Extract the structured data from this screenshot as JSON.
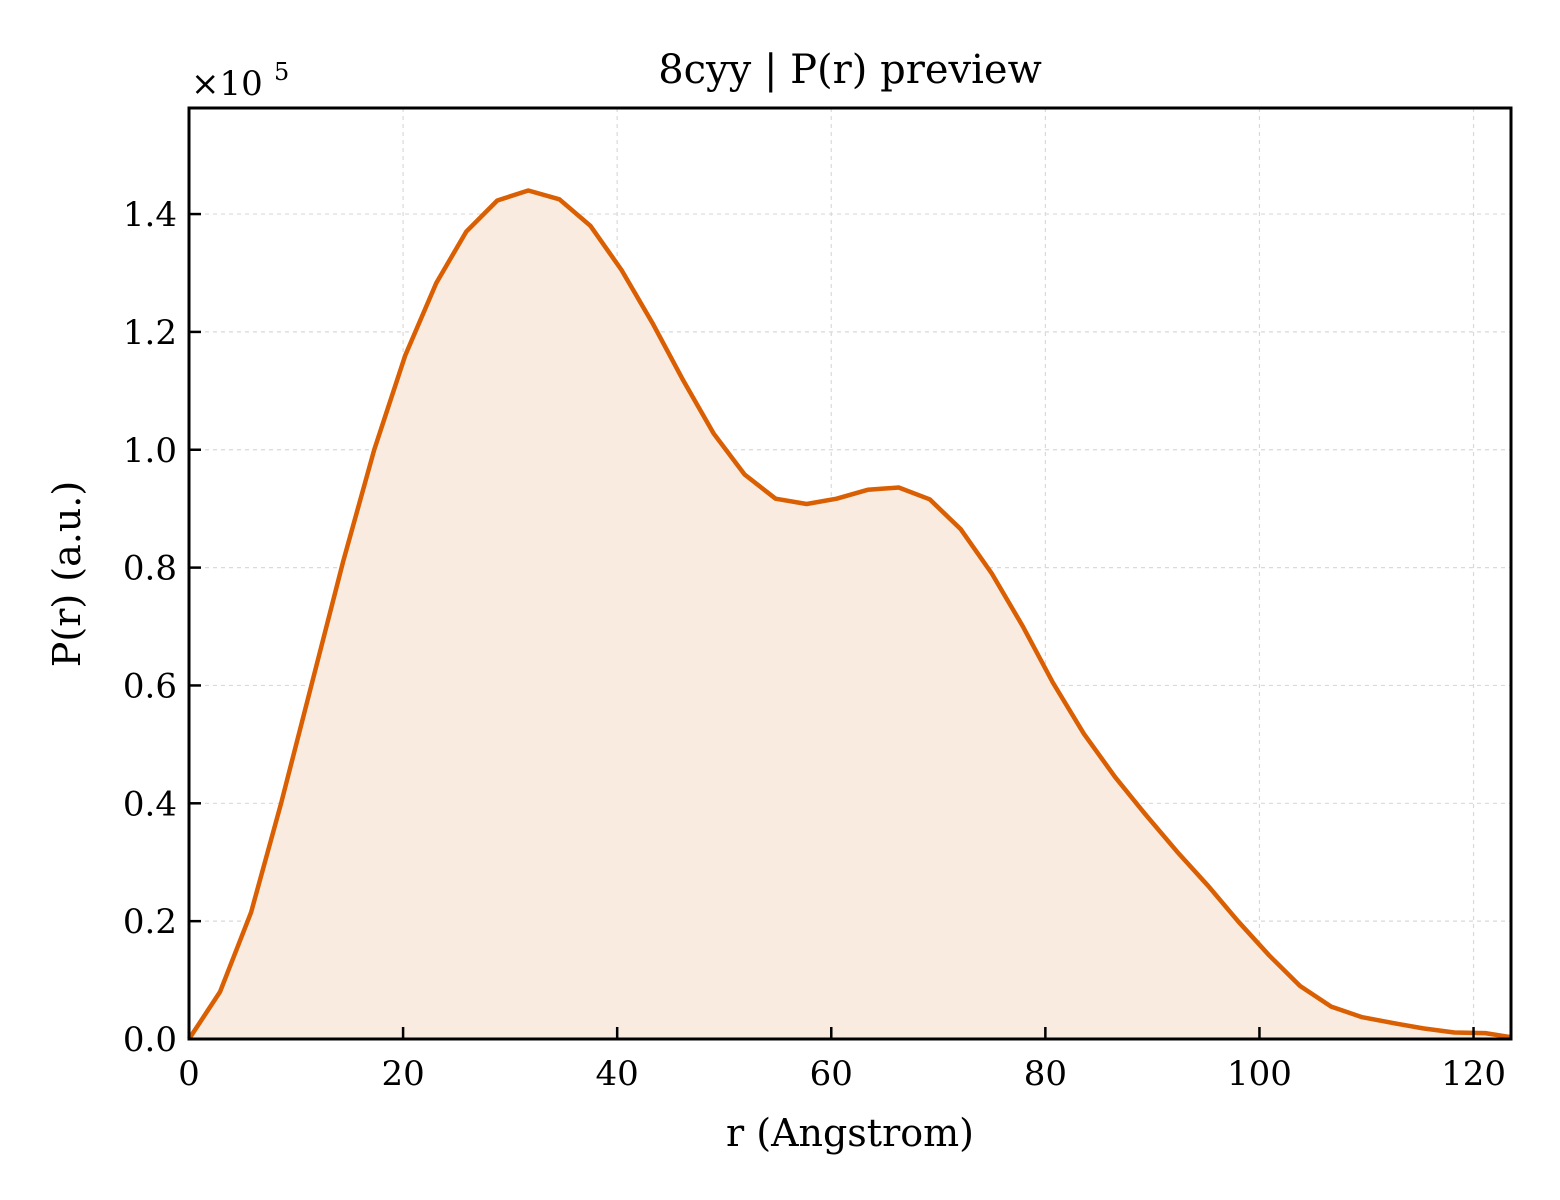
{
  "chart_data": {
    "type": "area",
    "title": "8cyy | P(r) preview",
    "xlabel": "r (Angstrom)",
    "ylabel": "P(r) (a.u.)",
    "y_multiplier_label": "×10",
    "y_multiplier_exponent": "5",
    "xlim": [
      0,
      123.5
    ],
    "ylim": [
      0,
      1.58
    ],
    "xticks": [
      0,
      20,
      40,
      60,
      80,
      100,
      120
    ],
    "xtick_labels": [
      "0",
      "20",
      "40",
      "60",
      "80",
      "100",
      "120"
    ],
    "yticks": [
      0.0,
      0.2,
      0.4,
      0.6,
      0.8,
      1.0,
      1.2,
      1.4
    ],
    "ytick_labels": [
      "0.0",
      "0.2",
      "0.4",
      "0.6",
      "0.8",
      "1.0",
      "1.2",
      "1.4"
    ],
    "grid": true,
    "colors": {
      "line": "#d95f02",
      "fill": "#f9ebe0",
      "grid": "#d9d9d9",
      "axes": "#000000"
    },
    "series": [
      {
        "x": [
          0,
          2.9,
          5.8,
          8.6,
          11.5,
          14.4,
          17.3,
          20.2,
          23.1,
          25.9,
          28.8,
          31.7,
          34.6,
          37.5,
          40.4,
          43.3,
          46.1,
          49.0,
          51.9,
          54.8,
          57.7,
          60.5,
          63.4,
          66.3,
          69.2,
          72.1,
          75.0,
          77.9,
          80.7,
          83.6,
          86.5,
          89.4,
          92.3,
          95.2,
          98.0,
          100.9,
          103.8,
          106.7,
          109.6,
          112.5,
          115.3,
          118.2,
          121.1,
          123.5
        ],
        "y": [
          0.0,
          0.08,
          0.215,
          0.4,
          0.605,
          0.81,
          1.0,
          1.16,
          1.283,
          1.37,
          1.423,
          1.44,
          1.425,
          1.38,
          1.305,
          1.215,
          1.12,
          1.028,
          0.958,
          0.917,
          0.908,
          0.917,
          0.932,
          0.936,
          0.916,
          0.865,
          0.79,
          0.7,
          0.605,
          0.518,
          0.445,
          0.38,
          0.318,
          0.26,
          0.2,
          0.142,
          0.09,
          0.055,
          0.037,
          0.027,
          0.018,
          0.011,
          0.01,
          0.003
        ]
      }
    ]
  }
}
